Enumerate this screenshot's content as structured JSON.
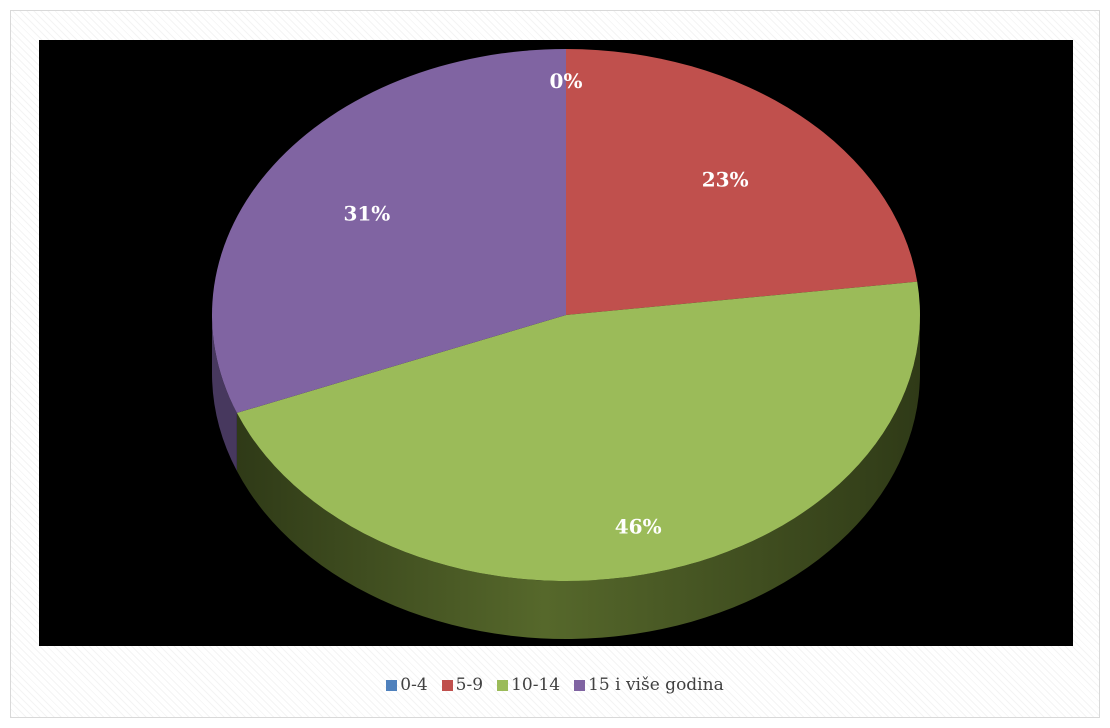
{
  "chart_data": {
    "type": "pie",
    "title": "",
    "style": "3d",
    "legend_position": "bottom",
    "categories": [
      "0-4",
      "5-9",
      "10-14",
      "15 i više godina"
    ],
    "values": [
      0,
      23,
      46,
      31
    ],
    "data_labels": [
      "0%",
      "23%",
      "46%",
      "31%"
    ],
    "colors": [
      "#4f81bd",
      "#c0504d",
      "#9bbb59",
      "#8064a2"
    ],
    "side_colors": [
      "#2c4a6e",
      "#6e2d2c",
      "#4a5a25",
      "#47385e"
    ],
    "plot_background": "#000000"
  }
}
